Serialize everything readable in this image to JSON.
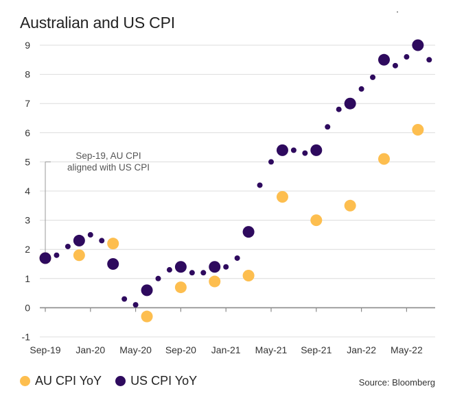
{
  "chart_data": {
    "type": "scatter",
    "title": "Australian and US CPI",
    "source": "Source: Bloomberg",
    "ylim": [
      -1,
      9
    ],
    "yticks": [
      -1,
      0,
      1,
      2,
      3,
      4,
      5,
      6,
      7,
      8,
      9
    ],
    "xlim": [
      "2019-09",
      "2022-07"
    ],
    "xticks": [
      "Sep-19",
      "Jan-20",
      "May-20",
      "Sep-20",
      "Jan-21",
      "May-21",
      "Sep-21",
      "Jan-22",
      "May-22"
    ],
    "grid": true,
    "legend_position": "bottom-left",
    "annotation": {
      "text_line1": "Sep-19, AU CPI",
      "text_line2": "aligned with US CPI",
      "x": "2019-09",
      "y_from": 1.7,
      "y_to": 5.0
    },
    "series": [
      {
        "name": "AU CPI YoY",
        "color": "#FDBE4F",
        "marker": "large",
        "points": [
          {
            "x": "2019-09",
            "y": 1.7
          },
          {
            "x": "2019-12",
            "y": 1.8
          },
          {
            "x": "2020-03",
            "y": 2.2
          },
          {
            "x": "2020-06",
            "y": -0.3
          },
          {
            "x": "2020-09",
            "y": 0.7
          },
          {
            "x": "2020-12",
            "y": 0.9
          },
          {
            "x": "2021-03",
            "y": 1.1
          },
          {
            "x": "2021-06",
            "y": 3.8
          },
          {
            "x": "2021-09",
            "y": 3.0
          },
          {
            "x": "2021-12",
            "y": 3.5
          },
          {
            "x": "2022-03",
            "y": 5.1
          },
          {
            "x": "2022-06",
            "y": 6.1
          }
        ]
      },
      {
        "name": "US CPI YoY",
        "color": "#2E0A5E",
        "points": [
          {
            "x": "2019-09",
            "y": 1.7,
            "marker": "large"
          },
          {
            "x": "2019-10",
            "y": 1.8,
            "marker": "small"
          },
          {
            "x": "2019-11",
            "y": 2.1,
            "marker": "small"
          },
          {
            "x": "2019-12",
            "y": 2.3,
            "marker": "large"
          },
          {
            "x": "2020-01",
            "y": 2.5,
            "marker": "small"
          },
          {
            "x": "2020-02",
            "y": 2.3,
            "marker": "small"
          },
          {
            "x": "2020-03",
            "y": 1.5,
            "marker": "large"
          },
          {
            "x": "2020-04",
            "y": 0.3,
            "marker": "small"
          },
          {
            "x": "2020-05",
            "y": 0.1,
            "marker": "small"
          },
          {
            "x": "2020-06",
            "y": 0.6,
            "marker": "large"
          },
          {
            "x": "2020-07",
            "y": 1.0,
            "marker": "small"
          },
          {
            "x": "2020-08",
            "y": 1.3,
            "marker": "small"
          },
          {
            "x": "2020-09",
            "y": 1.4,
            "marker": "large"
          },
          {
            "x": "2020-10",
            "y": 1.2,
            "marker": "small"
          },
          {
            "x": "2020-11",
            "y": 1.2,
            "marker": "small"
          },
          {
            "x": "2020-12",
            "y": 1.4,
            "marker": "large"
          },
          {
            "x": "2021-01",
            "y": 1.4,
            "marker": "small"
          },
          {
            "x": "2021-02",
            "y": 1.7,
            "marker": "small"
          },
          {
            "x": "2021-03",
            "y": 2.6,
            "marker": "large"
          },
          {
            "x": "2021-04",
            "y": 4.2,
            "marker": "small"
          },
          {
            "x": "2021-05",
            "y": 5.0,
            "marker": "small"
          },
          {
            "x": "2021-06",
            "y": 5.4,
            "marker": "large"
          },
          {
            "x": "2021-07",
            "y": 5.4,
            "marker": "small"
          },
          {
            "x": "2021-08",
            "y": 5.3,
            "marker": "small"
          },
          {
            "x": "2021-09",
            "y": 5.4,
            "marker": "large"
          },
          {
            "x": "2021-10",
            "y": 6.2,
            "marker": "small"
          },
          {
            "x": "2021-11",
            "y": 6.8,
            "marker": "small"
          },
          {
            "x": "2021-12",
            "y": 7.0,
            "marker": "large"
          },
          {
            "x": "2022-01",
            "y": 7.5,
            "marker": "small"
          },
          {
            "x": "2022-02",
            "y": 7.9,
            "marker": "small"
          },
          {
            "x": "2022-03",
            "y": 8.5,
            "marker": "large"
          },
          {
            "x": "2022-04",
            "y": 8.3,
            "marker": "small"
          },
          {
            "x": "2022-05",
            "y": 8.6,
            "marker": "small"
          },
          {
            "x": "2022-06",
            "y": 9.0,
            "marker": "large"
          },
          {
            "x": "2022-07",
            "y": 8.5,
            "marker": "small"
          }
        ]
      }
    ]
  }
}
